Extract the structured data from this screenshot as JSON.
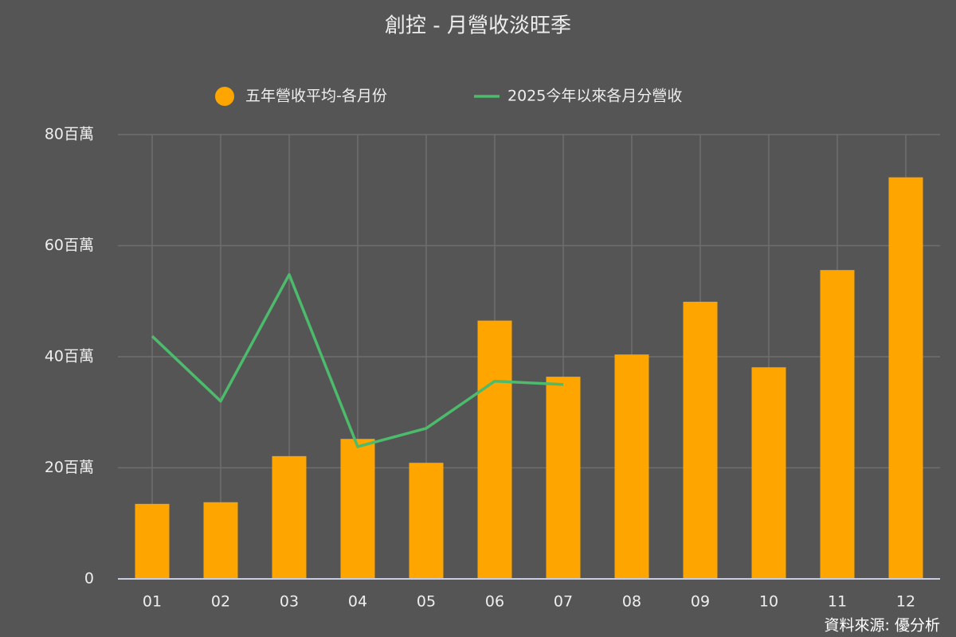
{
  "chart_data": {
    "type": "bar_line",
    "title": "創控 - 月營收淡旺季",
    "source": "資料來源: 優分析",
    "categories": [
      "01",
      "02",
      "03",
      "04",
      "05",
      "06",
      "07",
      "08",
      "09",
      "10",
      "11",
      "12"
    ],
    "series": [
      {
        "name": "五年營收平均-各月份",
        "type": "bar",
        "color": "#ffa500",
        "values": [
          13.5,
          13.8,
          22.1,
          25.2,
          20.9,
          46.5,
          36.4,
          40.4,
          49.9,
          38.1,
          55.6,
          72.3
        ]
      },
      {
        "name": "2025今年以來各月分營收",
        "type": "line",
        "color": "#4cbb6c",
        "values": [
          43.7,
          32.0,
          54.8,
          23.8,
          27.1,
          35.6,
          35.0,
          null,
          null,
          null,
          null,
          null
        ]
      }
    ],
    "ylim": [
      0,
      80
    ],
    "yticks": [
      0,
      {
        "value": 20,
        "label": "20百萬"
      },
      {
        "value": 40,
        "label": "40百萬"
      },
      {
        "value": 60,
        "label": "60百萬"
      },
      {
        "value": 80,
        "label": "80百萬"
      }
    ],
    "grid": true,
    "legend": "top"
  }
}
